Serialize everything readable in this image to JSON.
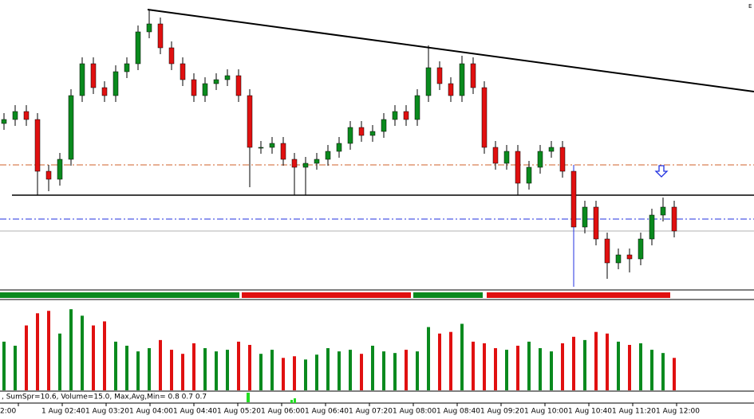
{
  "chart_data": {
    "type": "candlestick",
    "open": [
      205,
      210,
      220,
      210,
      145,
      135,
      160,
      240,
      280,
      250,
      240,
      270,
      280,
      320,
      330,
      300,
      280,
      260,
      240,
      255,
      260,
      265,
      240,
      175,
      175,
      180,
      160,
      150,
      155,
      160,
      170,
      180,
      200,
      190,
      195,
      210,
      220,
      210,
      240,
      275,
      255,
      240,
      280,
      250,
      175,
      155,
      170,
      130,
      150,
      170,
      175,
      145,
      75,
      100,
      60,
      30,
      40,
      35,
      60,
      90,
      100
    ],
    "high": [
      218,
      228,
      228,
      218,
      153,
      168,
      248,
      288,
      288,
      258,
      278,
      288,
      328,
      348,
      338,
      308,
      288,
      268,
      263,
      268,
      273,
      273,
      248,
      183,
      188,
      188,
      168,
      163,
      168,
      178,
      188,
      208,
      208,
      203,
      218,
      228,
      228,
      248,
      303,
      283,
      263,
      290,
      288,
      258,
      183,
      178,
      178,
      158,
      178,
      183,
      183,
      153,
      108,
      108,
      68,
      48,
      48,
      68,
      98,
      112,
      108
    ],
    "low": [
      197,
      202,
      202,
      115,
      120,
      127,
      152,
      232,
      242,
      232,
      232,
      262,
      272,
      312,
      292,
      272,
      252,
      232,
      232,
      247,
      252,
      232,
      125,
      167,
      167,
      152,
      115,
      115,
      147,
      152,
      162,
      172,
      182,
      182,
      187,
      202,
      202,
      202,
      232,
      247,
      232,
      232,
      242,
      167,
      147,
      147,
      115,
      122,
      142,
      162,
      137,
      0,
      67,
      52,
      10,
      22,
      18,
      27,
      52,
      82,
      62
    ],
    "close": [
      210,
      220,
      210,
      145,
      135,
      160,
      240,
      280,
      250,
      240,
      270,
      280,
      320,
      330,
      300,
      280,
      260,
      240,
      255,
      260,
      265,
      240,
      175,
      175,
      180,
      160,
      150,
      155,
      160,
      170,
      180,
      200,
      190,
      195,
      210,
      220,
      210,
      240,
      275,
      255,
      240,
      280,
      250,
      175,
      155,
      170,
      130,
      150,
      170,
      175,
      145,
      75,
      100,
      60,
      30,
      40,
      35,
      60,
      90,
      100,
      70
    ],
    "volume": [
      60,
      55,
      80,
      95,
      98,
      70,
      100,
      92,
      80,
      85,
      60,
      55,
      48,
      52,
      62,
      50,
      45,
      58,
      52,
      48,
      50,
      60,
      56,
      45,
      50,
      40,
      42,
      38,
      44,
      52,
      48,
      50,
      45,
      55,
      48,
      46,
      50,
      48,
      78,
      70,
      72,
      82,
      60,
      58,
      52,
      50,
      55,
      60,
      52,
      48,
      58,
      66,
      62,
      72,
      70,
      60,
      56,
      58,
      50,
      46,
      40
    ],
    "up_color": "#0a8a1e",
    "down_color": "#e01010",
    "ylim": [
      0,
      360
    ],
    "volume_ylim": [
      0,
      110
    ],
    "levels": [
      {
        "value": 115,
        "color": "#000000",
        "dash": "solid"
      },
      {
        "value": 153,
        "color": "#d0602a",
        "dash": "dashdot"
      },
      {
        "value": 85,
        "color": "#2030e0",
        "dash": "dashdot"
      },
      {
        "value": 70,
        "color": "#b0b0b0",
        "dash": "solid"
      }
    ],
    "trendline": [
      348,
      245
    ],
    "arrow": 138,
    "time_labels": [
      "2:00",
      "1 Aug 02:40",
      "1 Aug 03:20",
      "1 Aug 04:00",
      "1 Aug 04:40",
      "1 Aug 05:20",
      "1 Aug 06:00",
      "1 Aug 06:40",
      "1 Aug 07:20",
      "1 Aug 08:00",
      "1 Aug 08:40",
      "1 Aug 09:20",
      "1 Aug 10:00",
      "1 Aug 10:40",
      "1 Aug 11:20",
      "1 Aug 12:00"
    ],
    "status_text": ", SumSpr=10.6, Volume=15.0, Max,Avg,Min= 0.8 0.7 0.7",
    "corner_text": "E"
  }
}
